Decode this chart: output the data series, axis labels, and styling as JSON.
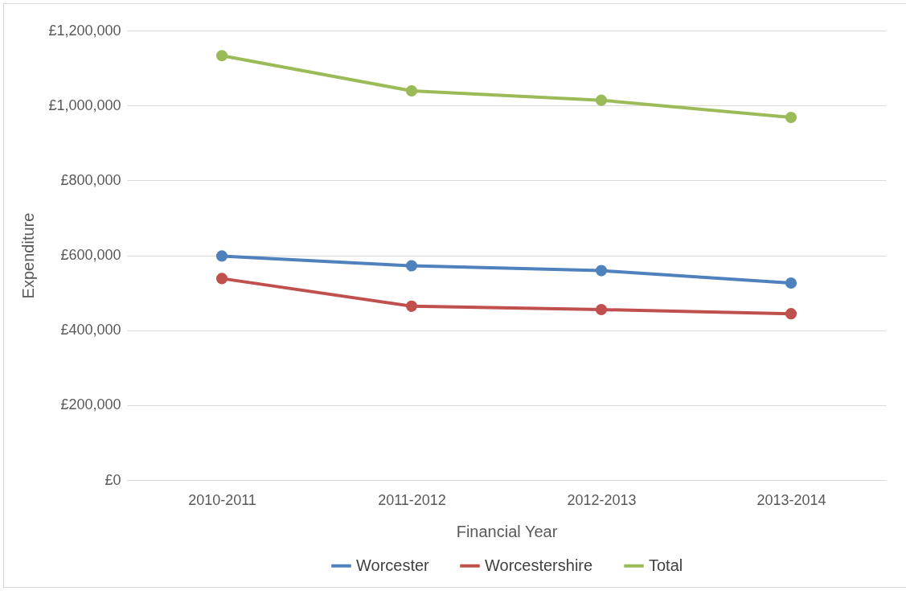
{
  "chart_data": {
    "type": "line",
    "xlabel": "Financial Year",
    "ylabel": "Expenditure",
    "categories": [
      "2010-2011",
      "2011-2012",
      "2012-2013",
      "2013-2014"
    ],
    "series": [
      {
        "name": "Worcester",
        "color": "#4f81bd",
        "values": [
          598000,
          572000,
          559000,
          526000
        ]
      },
      {
        "name": "Worcestershire",
        "color": "#c0504d",
        "values": [
          538000,
          464000,
          455000,
          444000
        ]
      },
      {
        "name": "Total",
        "color": "#9bbb59",
        "values": [
          1133000,
          1039000,
          1014000,
          968000
        ]
      }
    ],
    "ylim": [
      0,
      1200000
    ],
    "yticks": [
      {
        "value": 0,
        "label": "£0"
      },
      {
        "value": 200000,
        "label": "£200,000"
      },
      {
        "value": 400000,
        "label": "£400,000"
      },
      {
        "value": 600000,
        "label": "£600,000"
      },
      {
        "value": 800000,
        "label": "£800,000"
      },
      {
        "value": 1000000,
        "label": "£1,000,000"
      },
      {
        "value": 1200000,
        "label": "£1,200,000"
      }
    ],
    "grid": "y",
    "legend": "bottom",
    "marker": "circle",
    "line_style": "solid"
  }
}
